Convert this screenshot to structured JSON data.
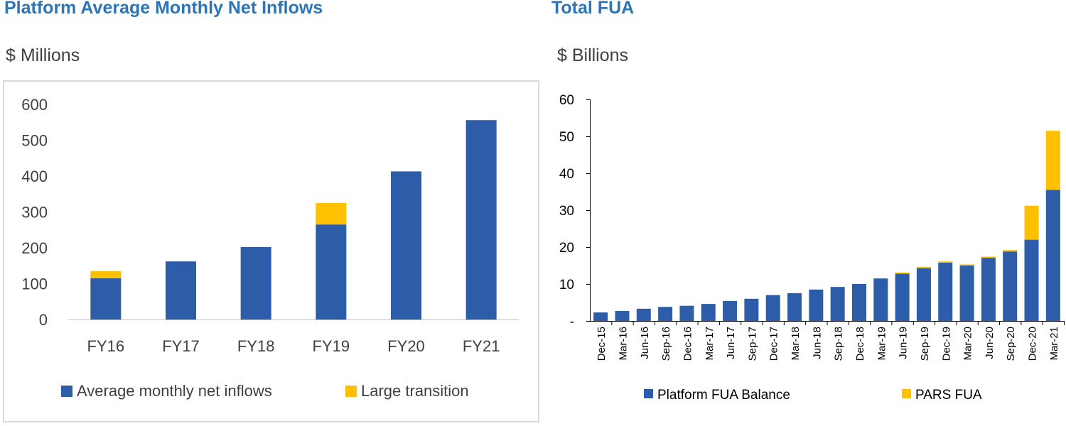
{
  "colors": {
    "primary": "#2d5ca8",
    "secondary": "#ffc000",
    "title": "#2e75b6"
  },
  "left_unit": "$ Millions",
  "right_unit": "$ Billions",
  "chart_data": [
    {
      "type": "bar",
      "stacked": true,
      "title": "Platform Average Monthly Net Inflows",
      "ylabel": "$ Millions",
      "categories": [
        "FY16",
        "FY17",
        "FY18",
        "FY19",
        "FY20",
        "FY21"
      ],
      "series": [
        {
          "name": "Average monthly net inflows",
          "values": [
            115,
            162,
            202,
            265,
            413,
            556
          ]
        },
        {
          "name": "Large transition",
          "values": [
            20,
            0,
            0,
            60,
            0,
            0
          ]
        }
      ],
      "ylim": [
        0,
        600
      ],
      "yticks": [
        "0",
        "100",
        "200",
        "300",
        "400",
        "500",
        "600"
      ],
      "grid": false,
      "legend": "bottom"
    },
    {
      "type": "bar",
      "stacked": true,
      "title": "Total FUA",
      "ylabel": "$ Billions",
      "categories": [
        "Dec-15",
        "Mar-16",
        "Jun-16",
        "Sep-16",
        "Dec-16",
        "Mar-17",
        "Jun-17",
        "Sep-17",
        "Dec-17",
        "Mar-18",
        "Jun-18",
        "Sep-18",
        "Dec-18",
        "Mar-19",
        "Jun-19",
        "Sep-19",
        "Dec-19",
        "Mar-20",
        "Jun-20",
        "Sep-20",
        "Dec-20",
        "Mar-21"
      ],
      "series": [
        {
          "name": "Platform FUA Balance",
          "values": [
            2.3,
            2.7,
            3.3,
            3.8,
            4.1,
            4.6,
            5.4,
            6.0,
            7.0,
            7.5,
            8.5,
            9.2,
            10.0,
            11.5,
            12.8,
            14.3,
            15.8,
            15.0,
            17.1,
            18.8,
            22.0,
            35.5
          ]
        },
        {
          "name": "PARS FUA",
          "values": [
            0,
            0,
            0,
            0,
            0,
            0,
            0,
            0,
            0,
            0,
            0,
            0,
            0,
            0,
            0.3,
            0.3,
            0.3,
            0.3,
            0.3,
            0.4,
            9.2,
            16.0
          ]
        }
      ],
      "ylim": [
        0,
        60
      ],
      "yticks": [
        "-",
        "10",
        "20",
        "30",
        "40",
        "50",
        "60"
      ],
      "grid": false,
      "legend": "bottom"
    }
  ]
}
